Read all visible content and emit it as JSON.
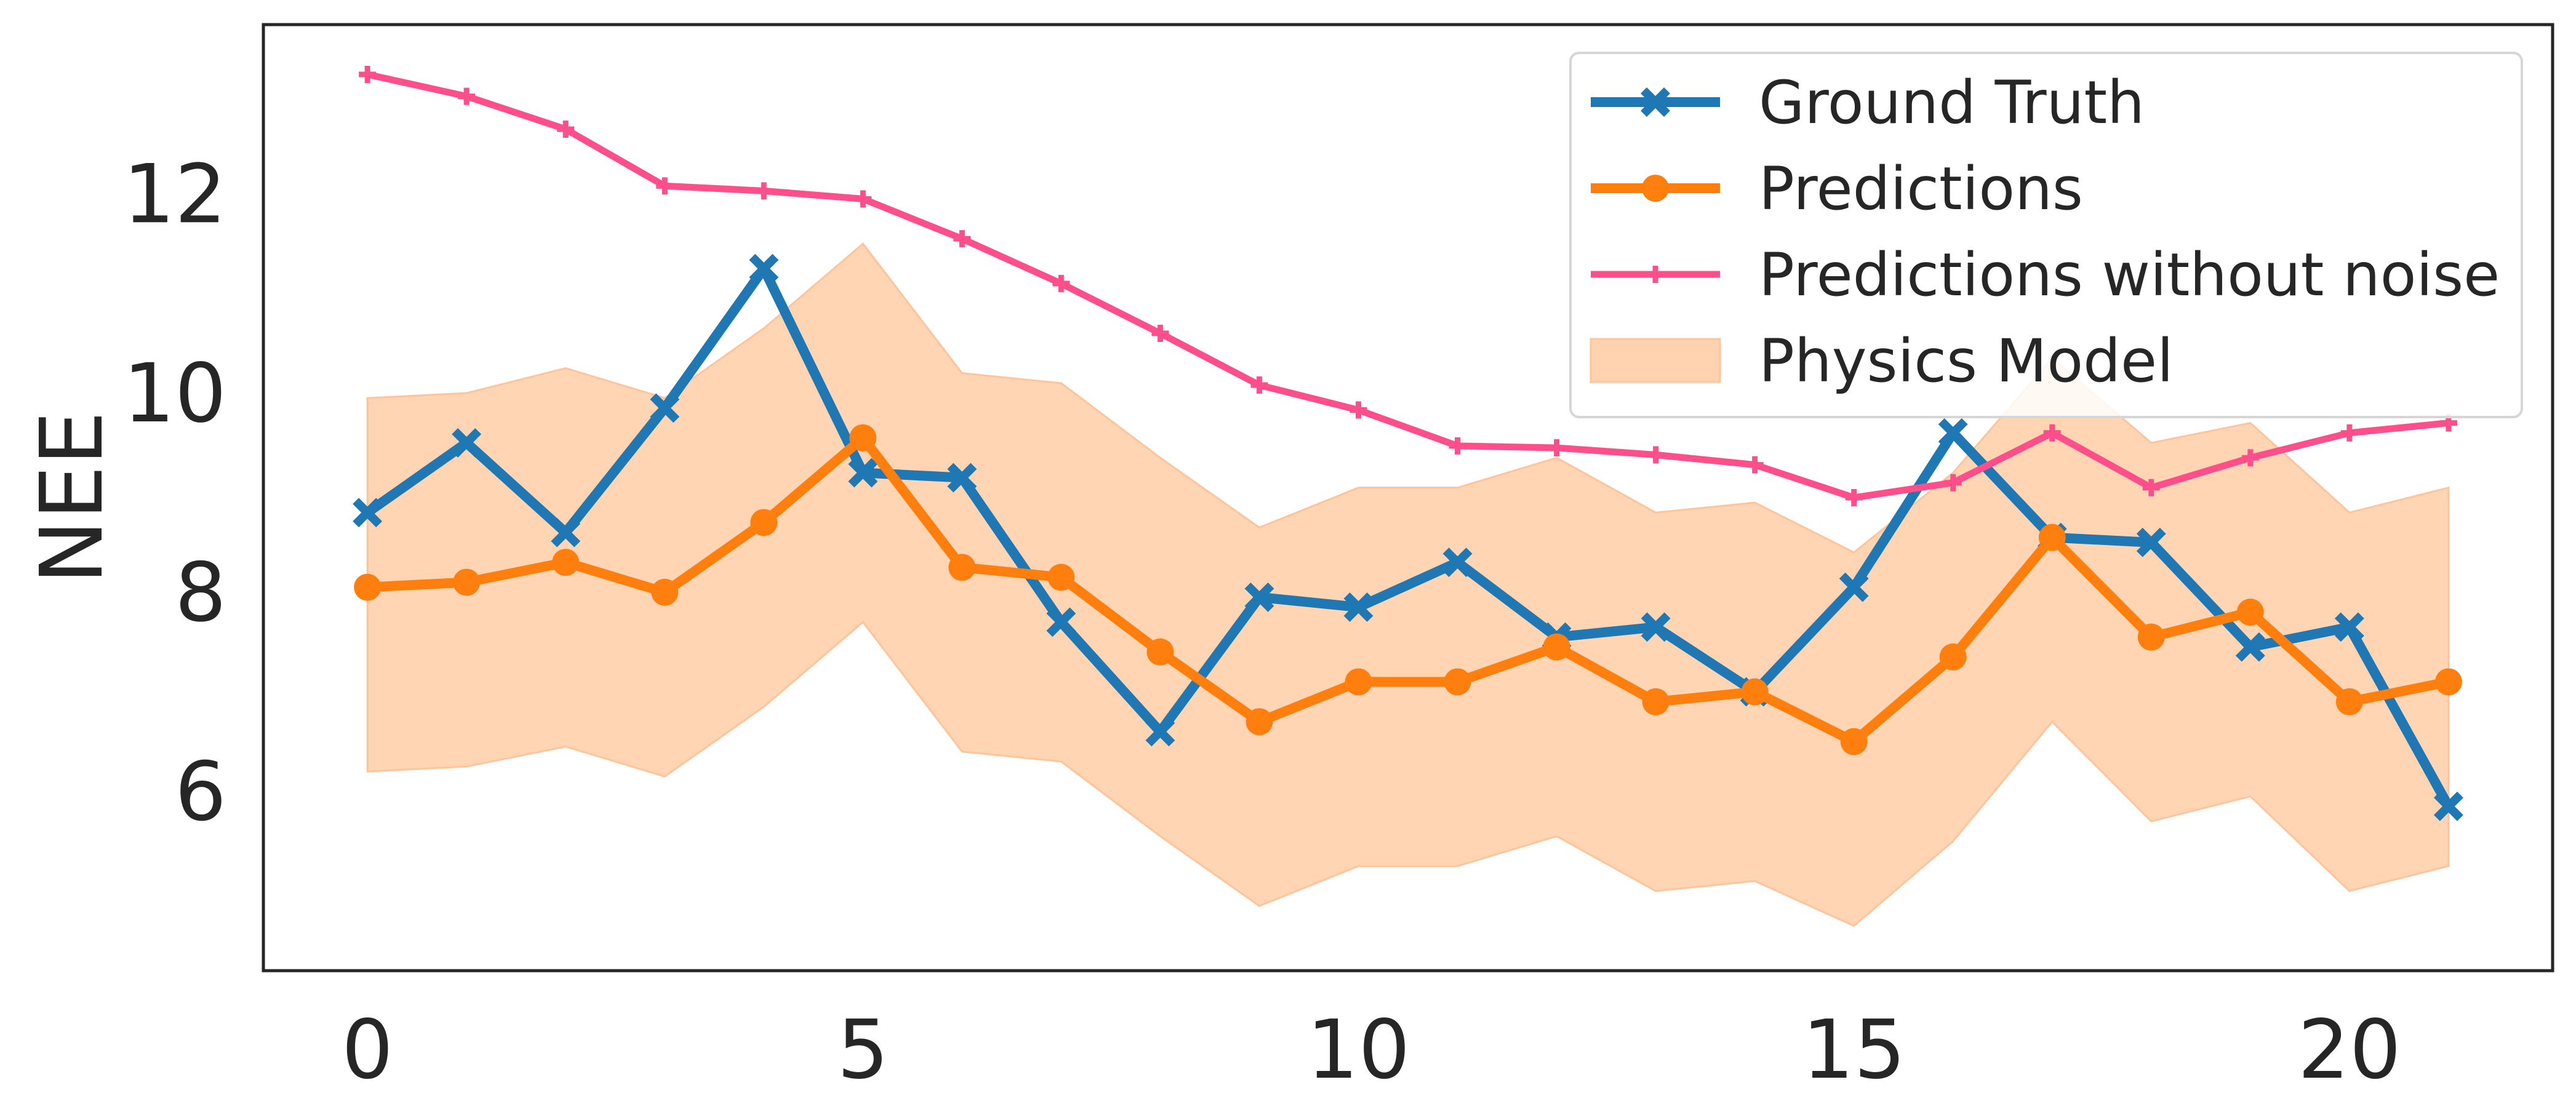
{
  "chart_data": {
    "type": "line",
    "title": "",
    "xlabel": "",
    "ylabel": "NEE",
    "xlim": [
      -1.05,
      22.05
    ],
    "ylim": [
      4.2,
      13.7
    ],
    "xticks": [
      0,
      5,
      10,
      15,
      20
    ],
    "yticks": [
      6,
      8,
      10,
      12
    ],
    "grid": false,
    "legend_position": "top-right",
    "x": [
      0,
      1,
      2,
      3,
      4,
      5,
      6,
      7,
      8,
      9,
      10,
      11,
      12,
      13,
      14,
      15,
      16,
      17,
      18,
      19,
      20,
      21
    ],
    "series": [
      {
        "name": "Ground Truth",
        "color": "#1f77b4",
        "marker": "x",
        "values": [
          8.8,
          9.5,
          8.6,
          9.85,
          11.25,
          9.2,
          9.15,
          7.7,
          6.6,
          7.95,
          7.85,
          8.3,
          7.55,
          7.65,
          7.0,
          8.05,
          9.6,
          8.55,
          8.5,
          7.45,
          7.65,
          5.85
        ]
      },
      {
        "name": "Predictions",
        "color": "#ff7f0e",
        "marker": "o",
        "values": [
          8.05,
          8.1,
          8.3,
          8.0,
          8.7,
          9.55,
          8.25,
          8.15,
          7.4,
          6.7,
          7.1,
          7.1,
          7.45,
          6.9,
          7.0,
          6.5,
          7.35,
          8.55,
          7.55,
          7.8,
          6.9,
          7.1
        ]
      },
      {
        "name": "Predictions without noise",
        "color": "#ff4f8b",
        "marker": "+",
        "values": [
          13.2,
          12.98,
          12.65,
          12.08,
          12.03,
          11.95,
          11.55,
          11.1,
          10.6,
          10.08,
          9.83,
          9.47,
          9.45,
          9.38,
          9.28,
          8.95,
          9.1,
          9.6,
          9.05,
          9.35,
          9.6,
          9.7
        ]
      }
    ],
    "band": {
      "name": "Physics Model",
      "color": "#ffd3b0",
      "lower": [
        6.2,
        6.25,
        6.45,
        6.15,
        6.85,
        7.7,
        6.4,
        6.3,
        5.55,
        4.85,
        5.25,
        5.25,
        5.55,
        5.0,
        5.1,
        4.65,
        5.5,
        6.7,
        5.7,
        5.95,
        5.0,
        5.25
      ],
      "upper": [
        9.95,
        10.0,
        10.25,
        9.95,
        10.65,
        11.5,
        10.2,
        10.1,
        9.35,
        8.65,
        9.05,
        9.05,
        9.35,
        8.8,
        8.9,
        8.4,
        9.2,
        10.35,
        9.5,
        9.7,
        8.8,
        9.05
      ]
    }
  }
}
